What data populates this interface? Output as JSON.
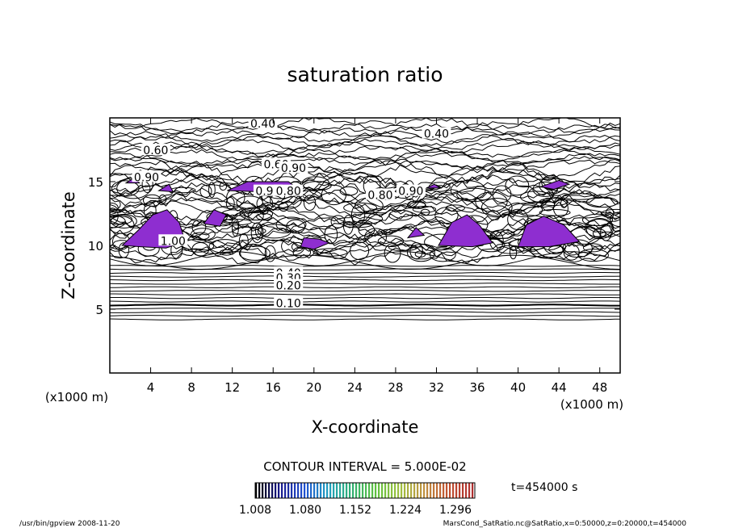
{
  "chart_data": {
    "type": "contour",
    "title": "saturation ratio",
    "xlabel": "X-coordinate",
    "ylabel": "Z-coordinate",
    "x_unit": "(x1000 m)",
    "z_unit": "(x1000 m)",
    "xlim": [
      0,
      50
    ],
    "zlim": [
      0,
      20
    ],
    "x_ticks": [
      "4",
      "8",
      "12",
      "16",
      "20",
      "24",
      "28",
      "32",
      "36",
      "40",
      "44",
      "48"
    ],
    "z_ticks": [
      "5",
      "10",
      "15"
    ],
    "contour_labels": [
      {
        "text": "0.40",
        "x": 15,
        "z": 19.5
      },
      {
        "text": "0.40",
        "x": 32,
        "z": 18.7
      },
      {
        "text": "0.60",
        "x": 4.5,
        "z": 17.4
      },
      {
        "text": "0.60",
        "x": 16.3,
        "z": 16.3
      },
      {
        "text": "0.90",
        "x": 18,
        "z": 16
      },
      {
        "text": "0.90",
        "x": 3.6,
        "z": 15.3
      },
      {
        "text": "0.90",
        "x": 15.5,
        "z": 14.2
      },
      {
        "text": "0.80",
        "x": 17.5,
        "z": 14.2
      },
      {
        "text": "0.80",
        "x": 26.5,
        "z": 13.9
      },
      {
        "text": "0.90",
        "x": 29.5,
        "z": 14.2
      },
      {
        "text": "1.00",
        "x": 6.2,
        "z": 10.3
      },
      {
        "text": "0.40",
        "x": 17.5,
        "z": 7.8
      },
      {
        "text": "0.30",
        "x": 17.5,
        "z": 7.4
      },
      {
        "text": "0.20",
        "x": 17.5,
        "z": 6.8
      },
      {
        "text": "0.10",
        "x": 17.5,
        "z": 5.4
      }
    ],
    "contour_interval_label": "CONTOUR INTERVAL = 5.000E-02",
    "colorbar": {
      "ticks": [
        "1.008",
        "1.080",
        "1.152",
        "1.224",
        "1.296"
      ],
      "colors": [
        "#000000",
        "#1a1a8c",
        "#2050d0",
        "#20a0c0",
        "#30b070",
        "#60c040",
        "#a0c040",
        "#c09040",
        "#c05030",
        "#b03030"
      ]
    },
    "fill_color": "#8e2ed0",
    "time_label": "t=454000 s"
  },
  "footer": {
    "left": "/usr/bin/gpview   2008-11-20",
    "right": "MarsCond_SatRatio.nc@SatRatio,x=0:50000,z=0:20000,t=454000"
  }
}
